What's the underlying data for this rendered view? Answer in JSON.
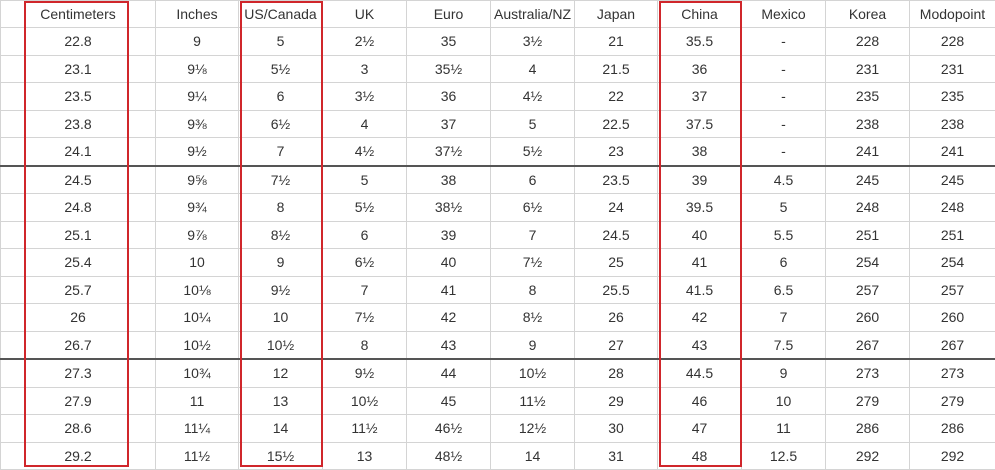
{
  "table": {
    "header": [
      "Centimeters",
      "Inches",
      "US/Canada",
      "UK",
      "Euro",
      "Australia/NZ",
      "Japan",
      "China",
      "Mexico",
      "Korea",
      "Modopoint"
    ],
    "rows": [
      [
        "22.8",
        "9",
        "5",
        "2½",
        "35",
        "3½",
        "21",
        "35.5",
        "-",
        "228",
        "228"
      ],
      [
        "23.1",
        "9⅛",
        "5½",
        "3",
        "35½",
        "4",
        "21.5",
        "36",
        "-",
        "231",
        "231"
      ],
      [
        "23.5",
        "9¼",
        "6",
        "3½",
        "36",
        "4½",
        "22",
        "37",
        "-",
        "235",
        "235"
      ],
      [
        "23.8",
        "9⅜",
        "6½",
        "4",
        "37",
        "5",
        "22.5",
        "37.5",
        "-",
        "238",
        "238"
      ],
      [
        "24.1",
        "9½",
        "7",
        "4½",
        "37½",
        "5½",
        "23",
        "38",
        "-",
        "241",
        "241"
      ],
      [
        "24.5",
        "9⅝",
        "7½",
        "5",
        "38",
        "6",
        "23.5",
        "39",
        "4.5",
        "245",
        "245"
      ],
      [
        "24.8",
        "9¾",
        "8",
        "5½",
        "38½",
        "6½",
        "24",
        "39.5",
        "5",
        "248",
        "248"
      ],
      [
        "25.1",
        "9⅞",
        "8½",
        "6",
        "39",
        "7",
        "24.5",
        "40",
        "5.5",
        "251",
        "251"
      ],
      [
        "25.4",
        "10",
        "9",
        "6½",
        "40",
        "7½",
        "25",
        "41",
        "6",
        "254",
        "254"
      ],
      [
        "25.7",
        "10⅛",
        "9½",
        "7",
        "41",
        "8",
        "25.5",
        "41.5",
        "6.5",
        "257",
        "257"
      ],
      [
        "26",
        "10¼",
        "10",
        "7½",
        "42",
        "8½",
        "26",
        "42",
        "7",
        "260",
        "260"
      ],
      [
        "26.7",
        "10½",
        "10½",
        "8",
        "43",
        "9",
        "27",
        "43",
        "7.5",
        "267",
        "267"
      ],
      [
        "27.3",
        "10¾",
        "12",
        "9½",
        "44",
        "10½",
        "28",
        "44.5",
        "9",
        "273",
        "273"
      ],
      [
        "27.9",
        "11",
        "13",
        "10½",
        "45",
        "11½",
        "29",
        "46",
        "10",
        "279",
        "279"
      ],
      [
        "28.6",
        "11¼",
        "14",
        "11½",
        "46½",
        "12½",
        "30",
        "47",
        "11",
        "286",
        "286"
      ],
      [
        "29.2",
        "11½",
        "15½",
        "13",
        "48½",
        "14",
        "31",
        "48",
        "12.5",
        "292",
        "292"
      ]
    ]
  }
}
